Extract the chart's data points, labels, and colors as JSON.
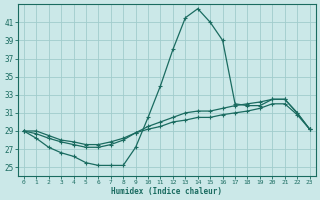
{
  "xlabel": "Humidex (Indice chaleur)",
  "bg_color": "#cbe8e8",
  "grid_color": "#a0cccc",
  "line_color": "#1a6b60",
  "xlim": [
    -0.5,
    23.5
  ],
  "ylim": [
    24,
    43
  ],
  "xticks": [
    0,
    1,
    2,
    3,
    4,
    5,
    6,
    7,
    8,
    9,
    10,
    11,
    12,
    13,
    14,
    15,
    16,
    17,
    18,
    19,
    20,
    21,
    22,
    23
  ],
  "yticks": [
    25,
    27,
    29,
    31,
    33,
    35,
    37,
    39,
    41
  ],
  "series": [
    {
      "x": [
        0,
        1,
        2,
        3,
        4,
        5,
        6,
        7,
        8,
        9,
        10,
        11,
        12,
        13,
        14,
        15,
        16,
        17,
        18,
        19,
        20,
        21,
        22,
        23
      ],
      "y": [
        29,
        28.2,
        27.2,
        26.6,
        26.2,
        25.5,
        25.2,
        25.2,
        25.2,
        27.2,
        30.5,
        34,
        38,
        41.5,
        42.5,
        41,
        39,
        32,
        31.8,
        31.8,
        32.5,
        32.5,
        31,
        29.2
      ]
    },
    {
      "x": [
        0,
        1,
        2,
        3,
        4,
        5,
        6,
        7,
        8,
        9,
        10,
        11,
        12,
        13,
        14,
        15,
        16,
        17,
        18,
        19,
        20,
        21,
        22,
        23
      ],
      "y": [
        29,
        28.7,
        28.2,
        27.8,
        27.5,
        27.2,
        27.2,
        27.5,
        28,
        28.8,
        29.5,
        30,
        30.5,
        31,
        31.2,
        31.2,
        31.5,
        31.8,
        32,
        32.2,
        32.5,
        32.5,
        31,
        29.2
      ]
    },
    {
      "x": [
        0,
        1,
        2,
        3,
        4,
        5,
        6,
        7,
        8,
        9,
        10,
        11,
        12,
        13,
        14,
        15,
        16,
        17,
        18,
        19,
        20,
        21,
        22,
        23
      ],
      "y": [
        29,
        29,
        28.5,
        28,
        27.8,
        27.5,
        27.5,
        27.8,
        28.2,
        28.8,
        29.2,
        29.5,
        30,
        30.2,
        30.5,
        30.5,
        30.8,
        31,
        31.2,
        31.5,
        32,
        32,
        30.8,
        29.2
      ]
    }
  ]
}
